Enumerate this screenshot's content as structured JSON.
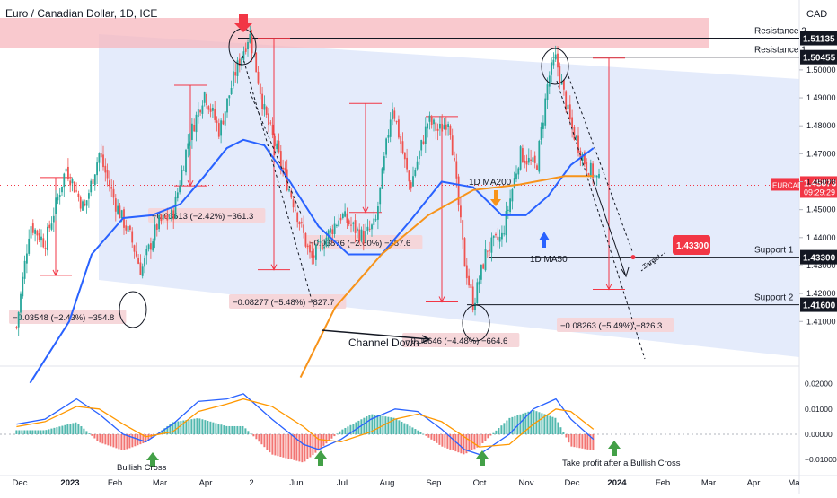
{
  "chart_title": "Euro / Canadian Dollar, 1D, ICE",
  "currency": "CAD",
  "colors": {
    "up": "#26a69a",
    "down": "#ef5350",
    "ma50": "#2962ff",
    "ma200": "#f7931a",
    "channel": "#dbe4fa",
    "resistance_zone": "#f7b7bd",
    "accent": "#f23645",
    "macd_line": "#2962ff",
    "signal_line": "#ff9800"
  },
  "chart_data": {
    "type": "line",
    "title": "Euro / Canadian Dollar, 1D, ICE",
    "ylim": [
      1.395,
      1.525
    ],
    "y_ticks": [
      1.41,
      1.42,
      1.43,
      1.44,
      1.45,
      1.46,
      1.47,
      1.48,
      1.49,
      1.5
    ],
    "x_ticks": [
      "Dec",
      "2023",
      "Feb",
      "Mar",
      "Apr",
      "2",
      "Jun",
      "Jul",
      "Aug",
      "Sep",
      "Oct",
      "Nov",
      "Dec",
      "2024",
      "Feb",
      "Mar",
      "Apr",
      "Ma"
    ],
    "series": [
      {
        "name": "1D MA50",
        "x": [
          "2022-12-10",
          "2023-01-05",
          "2023-01-20",
          "2023-02-10",
          "2023-03-01",
          "2023-03-20",
          "2023-04-05",
          "2023-04-20",
          "2023-05-01",
          "2023-05-15",
          "2023-06-01",
          "2023-06-20",
          "2023-07-10",
          "2023-08-01",
          "2023-08-20",
          "2023-09-10",
          "2023-10-01",
          "2023-10-20",
          "2023-11-05",
          "2023-11-20",
          "2023-12-05",
          "2023-12-20"
        ],
        "values": [
          1.388,
          1.41,
          1.434,
          1.447,
          1.448,
          1.452,
          1.462,
          1.472,
          1.475,
          1.473,
          1.46,
          1.444,
          1.434,
          1.434,
          1.446,
          1.46,
          1.458,
          1.448,
          1.448,
          1.455,
          1.466,
          1.472
        ]
      },
      {
        "name": "1D MA200",
        "x": [
          "2023-06-08",
          "2023-07-01",
          "2023-08-01",
          "2023-09-01",
          "2023-10-01",
          "2023-11-01",
          "2023-12-01",
          "2023-12-20"
        ],
        "values": [
          1.39,
          1.415,
          1.434,
          1.448,
          1.457,
          1.459,
          1.462,
          1.462
        ]
      }
    ],
    "price_path": {
      "x": [
        "2022-12-01",
        "2022-12-10",
        "2022-12-20",
        "2023-01-03",
        "2023-01-15",
        "2023-01-25",
        "2023-02-05",
        "2023-02-15",
        "2023-02-22",
        "2023-03-05",
        "2023-03-15",
        "2023-03-25",
        "2023-04-05",
        "2023-04-15",
        "2023-04-25",
        "2023-05-05",
        "2023-05-15",
        "2023-05-25",
        "2023-06-05",
        "2023-06-15",
        "2023-06-25",
        "2023-07-05",
        "2023-07-20",
        "2023-07-28",
        "2023-08-08",
        "2023-08-20",
        "2023-09-01",
        "2023-09-08",
        "2023-09-15",
        "2023-09-25",
        "2023-10-01",
        "2023-10-10",
        "2023-10-20",
        "2023-11-01",
        "2023-11-12",
        "2023-11-20",
        "2023-11-25",
        "2023-12-05",
        "2023-12-15",
        "2023-12-25"
      ],
      "values": [
        1.408,
        1.445,
        1.438,
        1.465,
        1.45,
        1.47,
        1.452,
        1.44,
        1.428,
        1.445,
        1.448,
        1.474,
        1.492,
        1.478,
        1.498,
        1.513,
        1.485,
        1.468,
        1.45,
        1.432,
        1.44,
        1.448,
        1.44,
        1.445,
        1.488,
        1.458,
        1.482,
        1.478,
        1.483,
        1.432,
        1.416,
        1.436,
        1.44,
        1.47,
        1.465,
        1.497,
        1.504,
        1.48,
        1.466,
        1.459
      ]
    },
    "horizontal_levels": [
      {
        "label": "Resistance 2",
        "value": 1.51135
      },
      {
        "label": "Resistance 1",
        "value": 1.50455
      },
      {
        "label": "Support 1",
        "value": 1.433
      },
      {
        "label": "Support 2",
        "value": 1.416
      }
    ],
    "last_price": {
      "symbol": "EURCAD",
      "value": 1.45873,
      "countdown": "09:29:29"
    },
    "target_value": 1.433,
    "measurements": [
      "−0.03548 (−2.43%) −354.8",
      "−0.03613 (−2.42%) −361.3",
      "−0.08277 (−5.48%) −827.7",
      "−0.03876 (−2.60%) −387.6",
      "−0.06646 (−4.48%) −664.6",
      "−0.08263 (−5.49%) −826.3"
    ],
    "annotations": [
      "1D MA200",
      "1D MA50",
      "Channel Down",
      "Target",
      "Bullish Cross",
      "Take profit after a Bullish Cross"
    ],
    "macd_ticks": [
      0.02,
      0.01,
      0.0,
      -0.01
    ],
    "macd_tick_labels": [
      "0.02000",
      "0.01000",
      "0.00000",
      "−0.01000"
    ],
    "macd": {
      "x": [
        "2022-12-01",
        "2022-12-20",
        "2023-01-10",
        "2023-01-25",
        "2023-02-10",
        "2023-02-25",
        "2023-03-15",
        "2023-04-01",
        "2023-04-20",
        "2023-05-01",
        "2023-05-20",
        "2023-06-10",
        "2023-06-20",
        "2023-07-05",
        "2023-07-25",
        "2023-08-10",
        "2023-08-25",
        "2023-09-10",
        "2023-09-25",
        "2023-10-05",
        "2023-10-25",
        "2023-11-10",
        "2023-11-25",
        "2023-12-05",
        "2023-12-20"
      ],
      "macd": [
        0.004,
        0.006,
        0.014,
        0.008,
        0.0,
        -0.003,
        0.004,
        0.013,
        0.014,
        0.016,
        0.006,
        -0.004,
        -0.006,
        -0.002,
        0.006,
        0.01,
        0.009,
        0.002,
        -0.006,
        -0.008,
        0.0,
        0.01,
        0.014,
        0.006,
        -0.002
      ],
      "signal": [
        0.003,
        0.005,
        0.011,
        0.01,
        0.004,
        -0.001,
        0.001,
        0.009,
        0.012,
        0.014,
        0.011,
        0.003,
        -0.002,
        -0.003,
        0.001,
        0.006,
        0.008,
        0.005,
        -0.001,
        -0.005,
        -0.004,
        0.004,
        0.01,
        0.009,
        0.002
      ]
    }
  }
}
